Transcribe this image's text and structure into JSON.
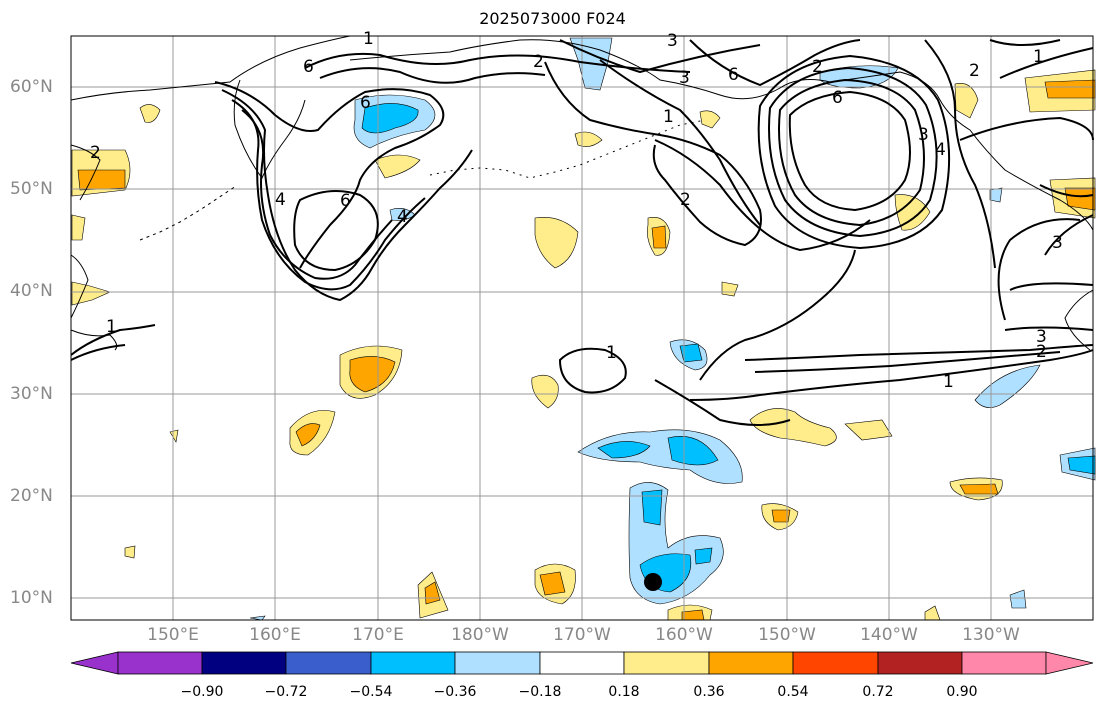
{
  "title": "2025073000 F024",
  "lat_labels": [
    "60°N",
    "50°N",
    "40°N",
    "30°N",
    "20°N",
    "10°N"
  ],
  "lon_labels": [
    "150°E",
    "160°E",
    "170°E",
    "180°W",
    "170°W",
    "160°W",
    "150°W",
    "140°W",
    "130°W"
  ],
  "colorbar": {
    "colors": [
      "#9932cc",
      "#000080",
      "#3a5fcd",
      "#00bfff",
      "#b0e0ff",
      "#ffffff",
      "#ffec8b",
      "#ffa500",
      "#ff4500",
      "#b22222",
      "#ff88aa"
    ],
    "tick_labels": [
      "−0.90",
      "−0.72",
      "−0.54",
      "−0.36",
      "−0.18",
      "0.18",
      "0.36",
      "0.54",
      "0.72",
      "0.90"
    ]
  },
  "contour_labels": [
    "1",
    "2",
    "3",
    "6",
    "6",
    "6",
    "4",
    "6",
    "2",
    "6",
    "3",
    "4",
    "2",
    "1",
    "1",
    "2",
    "3",
    "3",
    "2",
    "1",
    "1",
    "4",
    "3",
    "2",
    "1"
  ],
  "marker": {
    "name": "storm position",
    "color": "#000000"
  }
}
